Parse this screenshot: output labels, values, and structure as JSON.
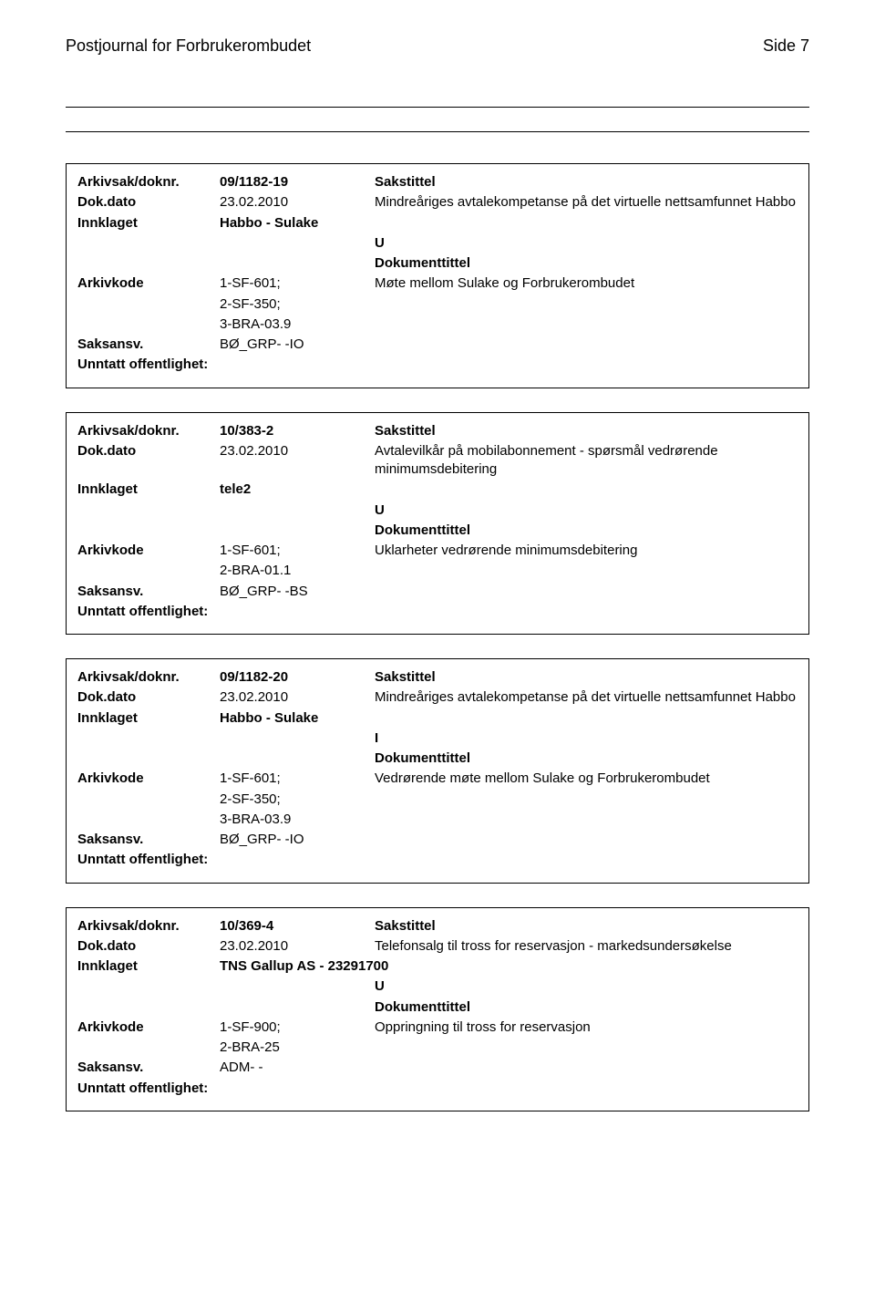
{
  "header": {
    "journal_title": "Postjournal for Forbrukerombudet",
    "page_label": "Side 7"
  },
  "labels": {
    "arkivsak": "Arkivsak/doknr.",
    "dokdato": "Dok.dato",
    "innklaget": "Innklaget",
    "arkivkode": "Arkivkode",
    "saksansv": "Saksansv.",
    "unntatt": "Unntatt offentlighet:",
    "sakstittel": "Sakstittel",
    "dokumenttittel": "Dokumenttittel"
  },
  "records": [
    {
      "doknr": "09/1182-19",
      "dokdato": "23.02.2010",
      "sakstittel": "Mindreåriges avtalekompetanse på det virtuelle nettsamfunnet Habbo",
      "innklaget": "Habbo  - Sulake",
      "dir": "U",
      "arkivkode_lines": [
        "1-SF-601;",
        "2-SF-350;",
        "3-BRA-03.9"
      ],
      "dokumenttittel": "Møte mellom Sulake og Forbrukerombudet",
      "saksansv": "BØ_GRP- -IO"
    },
    {
      "doknr": "10/383-2",
      "dokdato": "23.02.2010",
      "sakstittel": "Avtalevilkår på mobilabonnement - spørsmål vedrørende minimumsdebitering",
      "innklaget": "tele2",
      "dir": "U",
      "arkivkode_lines": [
        "1-SF-601;",
        "2-BRA-01.1"
      ],
      "dokumenttittel": "Uklarheter vedrørende minimumsdebitering",
      "saksansv": "BØ_GRP- -BS"
    },
    {
      "doknr": "09/1182-20",
      "dokdato": "23.02.2010",
      "sakstittel": "Mindreåriges avtalekompetanse på det virtuelle nettsamfunnet Habbo",
      "innklaget": "Habbo  - Sulake",
      "dir": "I",
      "arkivkode_lines": [
        "1-SF-601;",
        "2-SF-350;",
        "3-BRA-03.9"
      ],
      "dokumenttittel": "Vedrørende møte mellom Sulake og Forbrukerombudet",
      "saksansv": "BØ_GRP- -IO"
    },
    {
      "doknr": "10/369-4",
      "dokdato": "23.02.2010",
      "sakstittel": "Telefonsalg til tross for reservasjon - markedsundersøkelse",
      "innklaget": "TNS Gallup AS - 23291700",
      "dir": "U",
      "arkivkode_lines": [
        "1-SF-900;",
        "2-BRA-25"
      ],
      "dokumenttittel": "Oppringning til tross for reservasjon",
      "saksansv": "ADM- -"
    }
  ]
}
